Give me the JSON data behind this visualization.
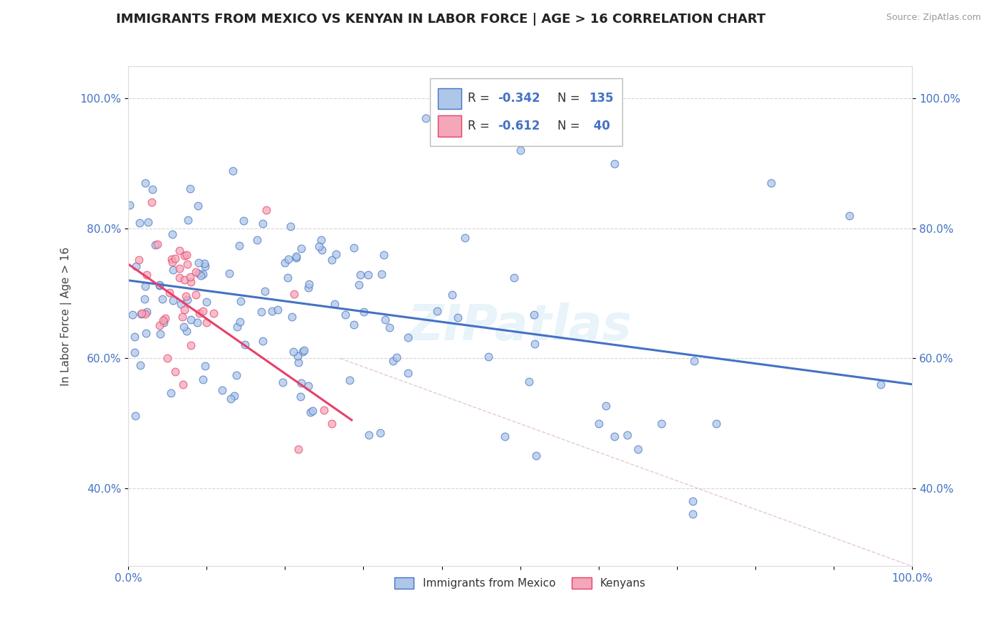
{
  "title": "IMMIGRANTS FROM MEXICO VS KENYAN IN LABOR FORCE | AGE > 16 CORRELATION CHART",
  "source_text": "Source: ZipAtlas.com",
  "ylabel": "In Labor Force | Age > 16",
  "xlim": [
    0.0,
    1.0
  ],
  "ylim": [
    0.28,
    1.05
  ],
  "x_tick_positions": [
    0.0,
    0.1,
    0.2,
    0.3,
    0.4,
    0.5,
    0.6,
    0.7,
    0.8,
    0.9,
    1.0
  ],
  "x_tick_labels_show": [
    "0.0%",
    "",
    "",
    "",
    "",
    "",
    "",
    "",
    "",
    "",
    "100.0%"
  ],
  "y_tick_vals": [
    0.4,
    0.6,
    0.8,
    1.0
  ],
  "y_tick_labels": [
    "40.0%",
    "60.0%",
    "80.0%",
    "100.0%"
  ],
  "color_mexico": "#aec6e8",
  "color_kenya": "#f4a7b9",
  "line_color_mexico": "#4472c4",
  "line_color_kenya": "#e8406a",
  "r_mexico": -0.342,
  "r_kenya": -0.612,
  "n_mexico": 135,
  "n_kenya": 40,
  "background_color": "#ffffff",
  "grid_color": "#cccccc",
  "watermark_text": "ZIPatlas",
  "scatter_alpha": 0.75,
  "scatter_size": 60,
  "diag_line_color": "#ddbbcc"
}
